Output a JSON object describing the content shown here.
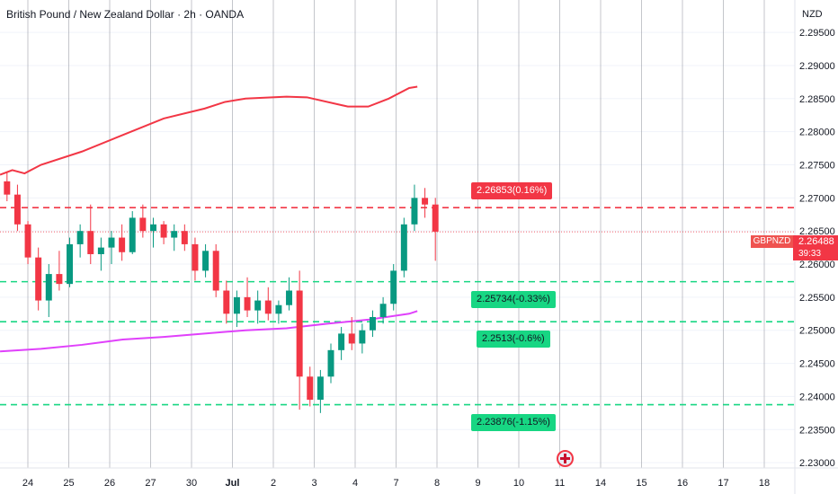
{
  "header": {
    "title": "British Pound / New Zealand Dollar · 2h · OANDA",
    "currency": "NZD"
  },
  "price_tag": {
    "symbol": "GBPNZD",
    "value": "2.26488",
    "timer": "39:33"
  },
  "level_labels": [
    {
      "text": "2.26853(0.16%)",
      "color": "#f23645",
      "price": 2.26853
    },
    {
      "text": "2.25734(-0.33%)",
      "color": "#17d683",
      "price": 2.25734
    },
    {
      "text": "2.2513(-0.6%)",
      "color": "#17d683",
      "price": 2.2513
    },
    {
      "text": "2.23876(-1.15%)",
      "color": "#17d683",
      "price": 2.23876
    }
  ],
  "chart_data": {
    "type": "candlestick",
    "symbol": "GBPNZD",
    "timeframe": "2h",
    "y_ticks": [
      "2.29500",
      "2.29000",
      "2.28500",
      "2.28000",
      "2.27500",
      "2.27000",
      "2.26500",
      "2.26000",
      "2.25500",
      "2.25000",
      "2.24500",
      "2.24000",
      "2.23500",
      "2.23000"
    ],
    "y_tick_values": [
      2.295,
      2.29,
      2.285,
      2.28,
      2.275,
      2.27,
      2.265,
      2.26,
      2.255,
      2.25,
      2.245,
      2.24,
      2.235,
      2.23
    ],
    "ylim": [
      2.2292,
      2.2999
    ],
    "x_ticks": [
      "24",
      "25",
      "26",
      "27",
      "30",
      "Jul",
      "2",
      "3",
      "4",
      "7",
      "8",
      "9",
      "10",
      "11",
      "14",
      "15",
      "16",
      "17",
      "18"
    ],
    "last_price": 2.26488,
    "horizontal_levels": [
      {
        "price": 2.26853,
        "color": "#f23645",
        "style": "dashed"
      },
      {
        "price": 2.25734,
        "color": "#17d683",
        "style": "dashed"
      },
      {
        "price": 2.2513,
        "color": "#17d683",
        "style": "dashed"
      },
      {
        "price": 2.23876,
        "color": "#17d683",
        "style": "dashed"
      }
    ],
    "series": [
      {
        "kind": "line",
        "color": "#f23645",
        "points": [
          [
            0,
            2.2735
          ],
          [
            0.3,
            2.2742
          ],
          [
            0.6,
            2.2737
          ],
          [
            1,
            2.275
          ],
          [
            2,
            2.277
          ],
          [
            3,
            2.2795
          ],
          [
            4,
            2.282
          ],
          [
            5,
            2.2835
          ],
          [
            5.5,
            2.2845
          ],
          [
            6,
            2.285
          ],
          [
            7,
            2.2853
          ],
          [
            7.5,
            2.2852
          ],
          [
            8.5,
            2.2838
          ],
          [
            9,
            2.2838
          ],
          [
            9.5,
            2.285
          ],
          [
            10,
            2.2866
          ],
          [
            10.2,
            2.2868
          ]
        ]
      },
      {
        "kind": "line",
        "color": "#e040fb",
        "points": [
          [
            0,
            2.2468
          ],
          [
            1,
            2.2472
          ],
          [
            2,
            2.2478
          ],
          [
            3,
            2.2486
          ],
          [
            4,
            2.249
          ],
          [
            5,
            2.2495
          ],
          [
            6,
            2.25
          ],
          [
            7,
            2.2503
          ],
          [
            8,
            2.251
          ],
          [
            9,
            2.2516
          ],
          [
            10,
            2.2525
          ],
          [
            10.2,
            2.2529
          ]
        ]
      },
      {
        "kind": "candles",
        "up_color": "#089981",
        "down_color": "#f23645",
        "ohlc": [
          [
            2.2725,
            2.274,
            2.2695,
            2.2705
          ],
          [
            2.2705,
            2.272,
            2.265,
            2.266
          ],
          [
            2.266,
            2.2665,
            2.26,
            2.261
          ],
          [
            2.261,
            2.2625,
            2.253,
            2.2545
          ],
          [
            2.2545,
            2.26,
            2.252,
            2.2585
          ],
          [
            2.2585,
            2.262,
            2.256,
            2.257
          ],
          [
            2.257,
            2.264,
            2.2565,
            2.263
          ],
          [
            2.263,
            2.266,
            2.261,
            2.265
          ],
          [
            2.265,
            2.269,
            2.26,
            2.2615
          ],
          [
            2.2615,
            2.264,
            2.259,
            2.2625
          ],
          [
            2.2625,
            2.265,
            2.26,
            2.264
          ],
          [
            2.264,
            2.266,
            2.2605,
            2.2618
          ],
          [
            2.2618,
            2.268,
            2.2615,
            2.267
          ],
          [
            2.267,
            2.269,
            2.264,
            2.265
          ],
          [
            2.265,
            2.267,
            2.2625,
            2.266
          ],
          [
            2.266,
            2.2665,
            2.263,
            2.264
          ],
          [
            2.264,
            2.266,
            2.262,
            2.265
          ],
          [
            2.265,
            2.266,
            2.262,
            2.263
          ],
          [
            2.263,
            2.264,
            2.2575,
            2.259
          ],
          [
            2.259,
            2.263,
            2.258,
            2.262
          ],
          [
            2.262,
            2.263,
            2.255,
            2.256
          ],
          [
            2.256,
            2.2575,
            2.251,
            2.2525
          ],
          [
            2.2525,
            2.256,
            2.2505,
            2.255
          ],
          [
            2.255,
            2.258,
            2.252,
            2.253
          ],
          [
            2.253,
            2.256,
            2.251,
            2.2545
          ],
          [
            2.2545,
            2.2565,
            2.2515,
            2.2525
          ],
          [
            2.2525,
            2.2545,
            2.251,
            2.2538
          ],
          [
            2.2538,
            2.258,
            2.253,
            2.256
          ],
          [
            2.256,
            2.259,
            2.238,
            2.243
          ],
          [
            2.243,
            2.2445,
            2.2385,
            2.2395
          ],
          [
            2.2395,
            2.244,
            2.2375,
            2.243
          ],
          [
            2.243,
            2.248,
            2.242,
            2.247
          ],
          [
            2.247,
            2.2505,
            2.2455,
            2.2495
          ],
          [
            2.2495,
            2.252,
            2.247,
            2.248
          ],
          [
            2.248,
            2.251,
            2.2465,
            2.25
          ],
          [
            2.25,
            2.253,
            2.249,
            2.252
          ],
          [
            2.252,
            2.255,
            2.251,
            2.254
          ],
          [
            2.254,
            2.26,
            2.253,
            2.259
          ],
          [
            2.259,
            2.267,
            2.258,
            2.266
          ],
          [
            2.266,
            2.272,
            2.265,
            2.27
          ],
          [
            2.27,
            2.2715,
            2.267,
            2.269
          ],
          [
            2.269,
            2.27,
            2.2605,
            2.2649
          ]
        ]
      }
    ]
  }
}
